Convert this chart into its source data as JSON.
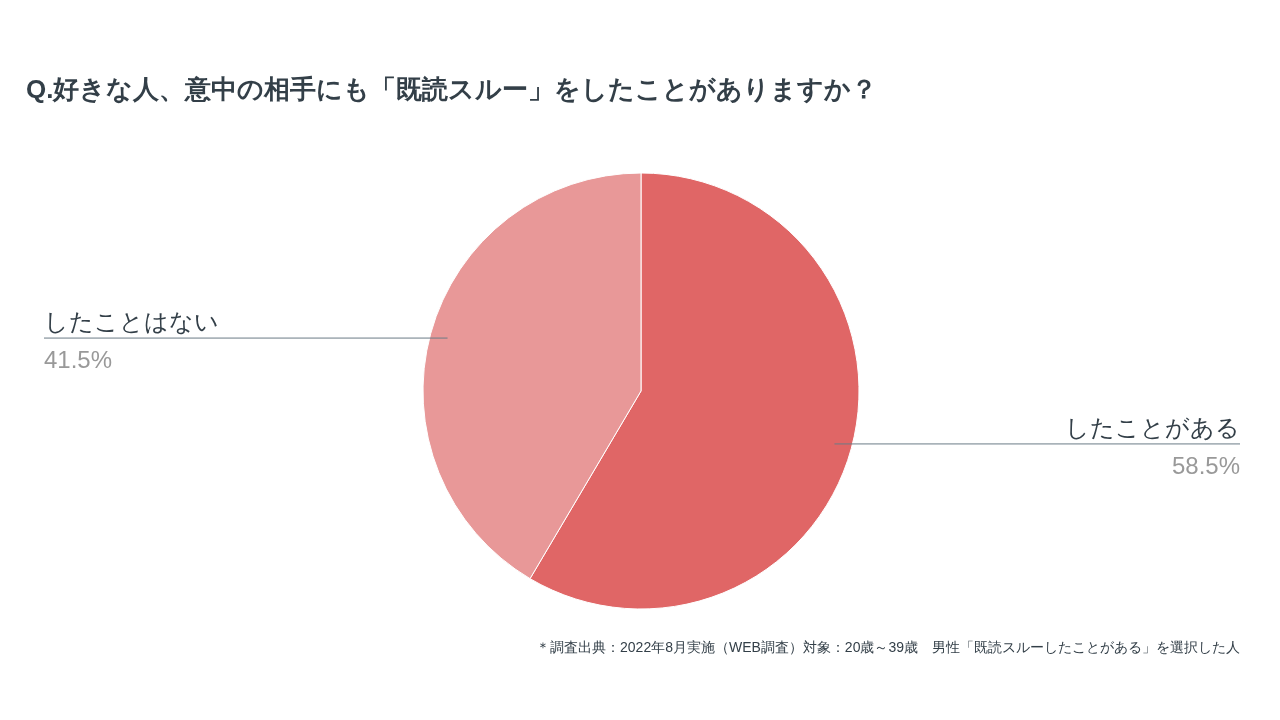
{
  "chart_data": {
    "type": "pie",
    "title": "Q.好きな人、意中の相手にも「既読スルー」をしたことがありますか？",
    "categories": [
      "したことがある",
      "したことはない"
    ],
    "values": [
      58.5,
      41.5
    ],
    "colors": [
      "#e06666",
      "#e89898"
    ],
    "value_labels": [
      "58.5%",
      "41.5%"
    ],
    "legend": false,
    "annotations": [
      "＊調査出典：2022年8月実施（WEB調査）対象：20歳～39歳　男性「既読スルーしたことがある」を選択した人"
    ]
  }
}
